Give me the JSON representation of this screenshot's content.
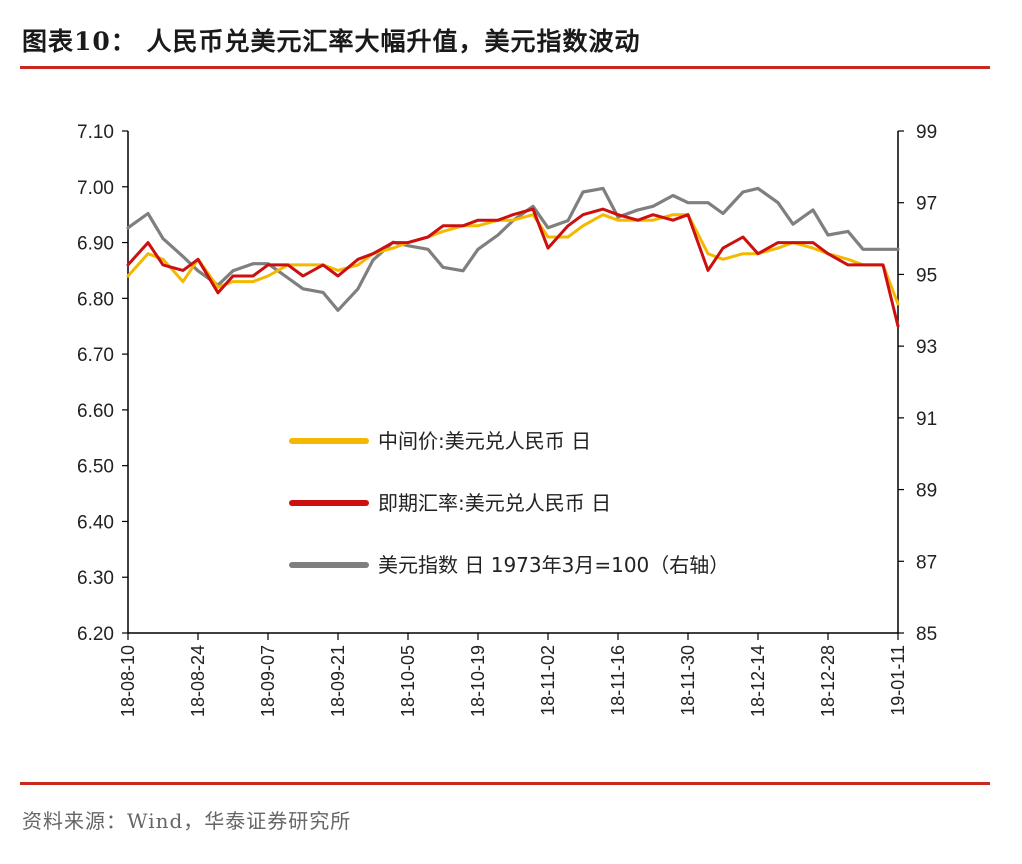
{
  "header": {
    "title": "图表10：  人民币兑美元汇率大幅升值，美元指数波动"
  },
  "footer": {
    "source": "资料来源：Wind，华泰证券研究所"
  },
  "colors": {
    "accent_rule": "#c8281e",
    "series_mid": "#f5b800",
    "series_spot": "#cc1010",
    "series_usd": "#7f7f7f"
  },
  "chart_data": {
    "type": "line",
    "x_tick_labels": [
      "18-08-10",
      "18-08-24",
      "18-09-07",
      "18-09-21",
      "18-10-05",
      "18-10-19",
      "18-11-02",
      "18-11-16",
      "18-11-30",
      "18-12-14",
      "18-12-28",
      "19-01-11"
    ],
    "x_range": [
      "2018-08-10",
      "2019-01-11"
    ],
    "left_axis": {
      "min": 6.2,
      "max": 7.1,
      "ticks": [
        "6.20",
        "6.30",
        "6.40",
        "6.50",
        "6.60",
        "6.70",
        "6.80",
        "6.90",
        "7.00",
        "7.10"
      ]
    },
    "right_axis": {
      "min": 85,
      "max": 99,
      "ticks": [
        "85",
        "87",
        "89",
        "91",
        "93",
        "95",
        "97",
        "99"
      ]
    },
    "legend": [
      {
        "key": "mid",
        "label": "中间价:美元兑人民币 日"
      },
      {
        "key": "spot",
        "label": "即期汇率:美元兑人民币 日"
      },
      {
        "key": "usd",
        "label": "美元指数 日 1973年3月=100（右轴）"
      }
    ],
    "series": [
      {
        "key": "mid",
        "name": "中间价:美元兑人民币 日",
        "axis": "left",
        "x": [
          "2018-08-10",
          "2018-08-14",
          "2018-08-17",
          "2018-08-21",
          "2018-08-24",
          "2018-08-28",
          "2018-08-31",
          "2018-09-04",
          "2018-09-07",
          "2018-09-11",
          "2018-09-14",
          "2018-09-18",
          "2018-09-21",
          "2018-09-25",
          "2018-09-28",
          "2018-10-02",
          "2018-10-05",
          "2018-10-09",
          "2018-10-12",
          "2018-10-16",
          "2018-10-19",
          "2018-10-23",
          "2018-10-26",
          "2018-10-30",
          "2018-11-02",
          "2018-11-06",
          "2018-11-09",
          "2018-11-13",
          "2018-11-16",
          "2018-11-20",
          "2018-11-23",
          "2018-11-27",
          "2018-11-30",
          "2018-12-04",
          "2018-12-07",
          "2018-12-11",
          "2018-12-14",
          "2018-12-18",
          "2018-12-21",
          "2018-12-25",
          "2018-12-28",
          "2019-01-01",
          "2019-01-04",
          "2019-01-08",
          "2019-01-11"
        ],
        "y": [
          6.84,
          6.88,
          6.87,
          6.83,
          6.87,
          6.82,
          6.83,
          6.83,
          6.84,
          6.86,
          6.86,
          6.86,
          6.85,
          6.86,
          6.88,
          6.89,
          6.9,
          6.91,
          6.92,
          6.93,
          6.93,
          6.94,
          6.94,
          6.95,
          6.91,
          6.91,
          6.93,
          6.95,
          6.94,
          6.94,
          6.94,
          6.95,
          6.95,
          6.88,
          6.87,
          6.88,
          6.88,
          6.89,
          6.9,
          6.89,
          6.88,
          6.87,
          6.86,
          6.86,
          6.79
        ]
      },
      {
        "key": "spot",
        "name": "即期汇率:美元兑人民币 日",
        "axis": "left",
        "x": [
          "2018-08-10",
          "2018-08-14",
          "2018-08-17",
          "2018-08-21",
          "2018-08-24",
          "2018-08-28",
          "2018-08-31",
          "2018-09-04",
          "2018-09-07",
          "2018-09-11",
          "2018-09-14",
          "2018-09-18",
          "2018-09-21",
          "2018-09-25",
          "2018-09-28",
          "2018-10-02",
          "2018-10-05",
          "2018-10-09",
          "2018-10-12",
          "2018-10-16",
          "2018-10-19",
          "2018-10-23",
          "2018-10-26",
          "2018-10-30",
          "2018-11-02",
          "2018-11-06",
          "2018-11-09",
          "2018-11-13",
          "2018-11-16",
          "2018-11-20",
          "2018-11-23",
          "2018-11-27",
          "2018-11-30",
          "2018-12-04",
          "2018-12-07",
          "2018-12-11",
          "2018-12-14",
          "2018-12-18",
          "2018-12-21",
          "2018-12-25",
          "2018-12-28",
          "2019-01-01",
          "2019-01-04",
          "2019-01-08",
          "2019-01-11"
        ],
        "y": [
          6.86,
          6.9,
          6.86,
          6.85,
          6.87,
          6.81,
          6.84,
          6.84,
          6.86,
          6.86,
          6.84,
          6.86,
          6.84,
          6.87,
          6.88,
          6.9,
          6.9,
          6.91,
          6.93,
          6.93,
          6.94,
          6.94,
          6.95,
          6.96,
          6.89,
          6.93,
          6.95,
          6.96,
          6.95,
          6.94,
          6.95,
          6.94,
          6.95,
          6.85,
          6.89,
          6.91,
          6.88,
          6.9,
          6.9,
          6.9,
          6.88,
          6.86,
          6.86,
          6.86,
          6.75
        ]
      },
      {
        "key": "usd",
        "name": "美元指数 日 1973年3月=100（右轴）",
        "axis": "right",
        "x": [
          "2018-08-10",
          "2018-08-14",
          "2018-08-17",
          "2018-08-21",
          "2018-08-24",
          "2018-08-28",
          "2018-08-31",
          "2018-09-04",
          "2018-09-07",
          "2018-09-11",
          "2018-09-14",
          "2018-09-18",
          "2018-09-21",
          "2018-09-25",
          "2018-09-28",
          "2018-10-02",
          "2018-10-05",
          "2018-10-09",
          "2018-10-12",
          "2018-10-16",
          "2018-10-19",
          "2018-10-23",
          "2018-10-26",
          "2018-10-30",
          "2018-11-02",
          "2018-11-06",
          "2018-11-09",
          "2018-11-13",
          "2018-11-16",
          "2018-11-20",
          "2018-11-23",
          "2018-11-27",
          "2018-11-30",
          "2018-12-04",
          "2018-12-07",
          "2018-12-11",
          "2018-12-14",
          "2018-12-18",
          "2018-12-21",
          "2018-12-25",
          "2018-12-28",
          "2019-01-01",
          "2019-01-04",
          "2019-01-08",
          "2019-01-11"
        ],
        "y": [
          96.3,
          96.7,
          96.0,
          95.5,
          95.1,
          94.7,
          95.1,
          95.3,
          95.3,
          94.9,
          94.6,
          94.5,
          94.0,
          94.6,
          95.4,
          95.9,
          95.8,
          95.7,
          95.2,
          95.1,
          95.7,
          96.1,
          96.5,
          96.9,
          96.3,
          96.5,
          97.3,
          97.4,
          96.6,
          96.8,
          96.9,
          97.2,
          97.0,
          97.0,
          96.7,
          97.3,
          97.4,
          97.0,
          96.4,
          96.8,
          96.1,
          96.2,
          95.7,
          95.7,
          95.7
        ]
      }
    ]
  }
}
